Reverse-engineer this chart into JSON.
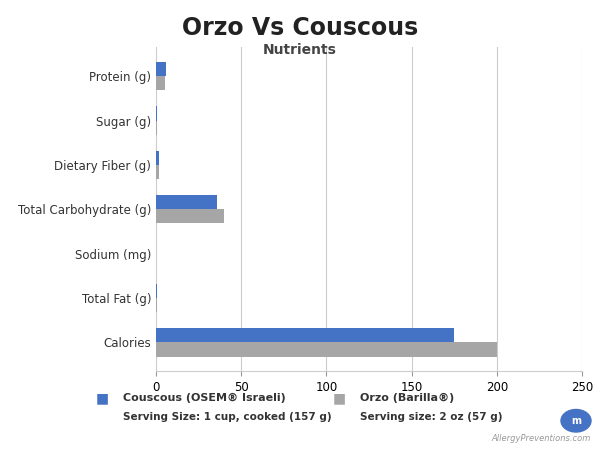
{
  "title": "Orzo Vs Couscous",
  "subtitle": "Nutrients",
  "categories": [
    "Calories",
    "Total Fat (g)",
    "Sodium (mg)",
    "Total Carbohydrate (g)",
    "Dietary Fiber (g)",
    "Sugar (g)",
    "Protein (g)"
  ],
  "couscous_values": [
    175,
    0.5,
    0,
    36,
    2,
    0.5,
    6
  ],
  "orzo_values": [
    200,
    0.5,
    0,
    40,
    1.5,
    0.5,
    5
  ],
  "couscous_color": "#4472C4",
  "orzo_color": "#A6A6A6",
  "couscous_label": "Couscous (OSEM® Israeli)",
  "couscous_serving": "Serving Size: 1 cup, cooked (157 g)",
  "orzo_label": "Orzo (Barilla®)",
  "orzo_serving": "Serving size: 2 oz (57 g)",
  "xlim": [
    0,
    250
  ],
  "xticks": [
    0,
    50,
    100,
    150,
    200,
    250
  ],
  "background_color": "#FFFFFF",
  "watermark": "AllergyPreventions.com"
}
